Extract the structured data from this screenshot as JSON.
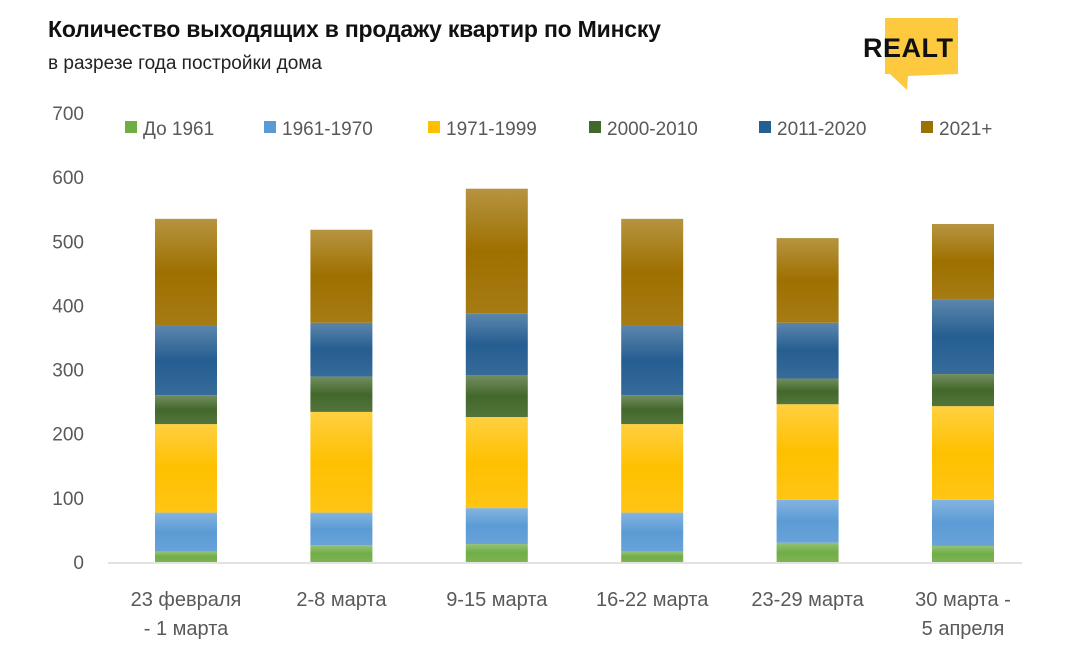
{
  "title": "Количество выходящих в продажу квартир по Минску",
  "subtitle": "в разрезе года постройки дома",
  "logo_text": "REALT",
  "chart_data": {
    "type": "bar",
    "stacked": true,
    "categories": [
      [
        "23 февраля",
        "- 1 марта"
      ],
      [
        "2-8 марта"
      ],
      [
        "9-15 марта"
      ],
      [
        "16-22 марта"
      ],
      [
        "23-29 марта"
      ],
      [
        "30 марта -",
        "5 апреля"
      ]
    ],
    "series": [
      {
        "name": "До 1961",
        "color": "#70ad47",
        "values": [
          16,
          26,
          28,
          16,
          30,
          25
        ]
      },
      {
        "name": "1961-1970",
        "color": "#5b9bd5",
        "values": [
          61,
          51,
          56,
          61,
          67,
          72
        ]
      },
      {
        "name": "1971-1999",
        "color": "#ffc000",
        "values": [
          138,
          157,
          142,
          138,
          149,
          146
        ]
      },
      {
        "name": "2000-2010",
        "color": "#43682b",
        "values": [
          45,
          55,
          65,
          45,
          40,
          50
        ]
      },
      {
        "name": "2011-2020",
        "color": "#255e91",
        "values": [
          108,
          84,
          96,
          108,
          87,
          116
        ]
      },
      {
        "name": "2021+",
        "color": "#9e7000",
        "values": [
          167,
          145,
          195,
          167,
          132,
          118
        ]
      }
    ],
    "ylim": [
      0,
      700
    ],
    "yticks": [
      0,
      100,
      200,
      300,
      400,
      500,
      600,
      700
    ],
    "grid": false,
    "legend": "top"
  }
}
